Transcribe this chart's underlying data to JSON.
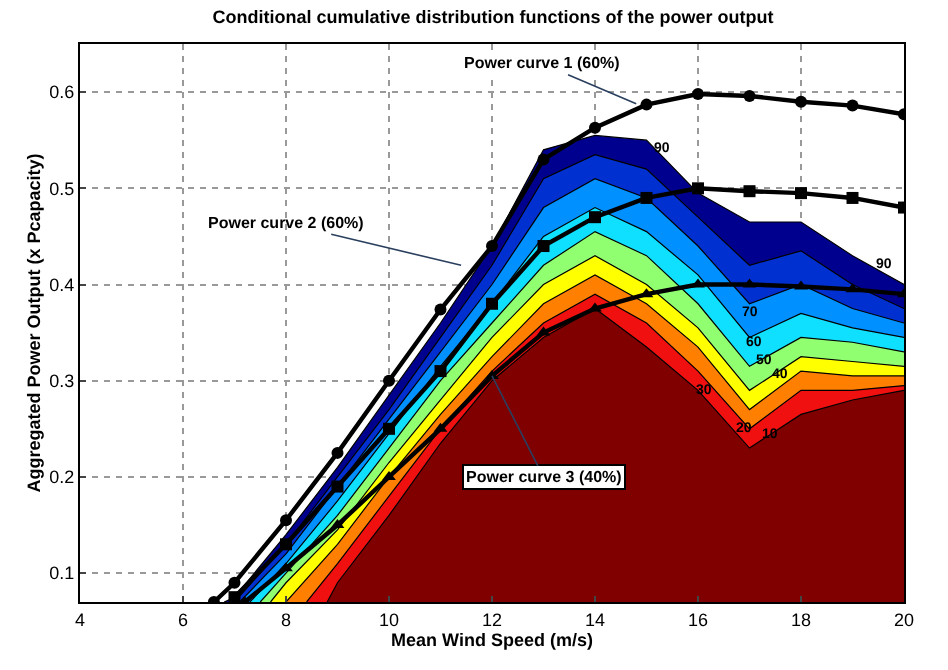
{
  "chart_data": {
    "type": "area",
    "title": "Conditional cumulative distribution functions of the power output",
    "xlabel": "Mean Wind Speed (m/s)",
    "ylabel": "Aggregated Power Output (x Pcapacity)",
    "xlim": [
      4,
      20
    ],
    "xticks": [
      4,
      6,
      8,
      10,
      12,
      14,
      16,
      18,
      20
    ],
    "ylim": [
      0.07,
      0.65
    ],
    "yticks": [
      0.1,
      0.2,
      0.3,
      0.4,
      0.5,
      0.6
    ],
    "grid": true,
    "series": [
      {
        "color": "#00008f",
        "x": [
          6.8,
          7,
          8,
          9,
          10,
          11,
          12,
          13,
          14,
          15,
          16,
          17,
          18,
          19,
          20
        ],
        "values": [
          0.07,
          0.075,
          0.14,
          0.21,
          0.285,
          0.36,
          0.44,
          0.54,
          0.555,
          0.55,
          0.495,
          0.465,
          0.465,
          0.43,
          0.4
        ]
      },
      {
        "color": "#0030d0",
        "x": [
          7,
          8,
          9,
          10,
          11,
          12,
          13,
          14,
          15,
          16,
          17,
          18,
          19,
          20
        ],
        "values": [
          0.07,
          0.13,
          0.2,
          0.27,
          0.345,
          0.42,
          0.51,
          0.535,
          0.52,
          0.47,
          0.42,
          0.435,
          0.4,
          0.375
        ]
      },
      {
        "color": "#0090ff",
        "x": [
          7.1,
          8,
          9,
          10,
          11,
          12,
          13,
          14,
          15,
          16,
          17,
          18,
          19,
          20
        ],
        "values": [
          0.07,
          0.12,
          0.19,
          0.26,
          0.33,
          0.4,
          0.48,
          0.51,
          0.49,
          0.44,
          0.38,
          0.4,
          0.375,
          0.36
        ]
      },
      {
        "color": "#10e0ff",
        "x": [
          7.3,
          8,
          9,
          10,
          11,
          12,
          13,
          14,
          15,
          16,
          17,
          18,
          19,
          20
        ],
        "values": [
          0.07,
          0.11,
          0.175,
          0.245,
          0.315,
          0.38,
          0.45,
          0.48,
          0.455,
          0.41,
          0.345,
          0.37,
          0.355,
          0.345
        ]
      },
      {
        "color": "#90ff70",
        "x": [
          7.5,
          8,
          9,
          10,
          11,
          12,
          13,
          14,
          15,
          16,
          17,
          18,
          19,
          20
        ],
        "values": [
          0.07,
          0.1,
          0.16,
          0.23,
          0.3,
          0.36,
          0.42,
          0.455,
          0.43,
          0.38,
          0.315,
          0.345,
          0.34,
          0.33
        ]
      },
      {
        "color": "#ffff00",
        "x": [
          7.7,
          8,
          9,
          10,
          11,
          12,
          13,
          14,
          15,
          16,
          17,
          18,
          19,
          20
        ],
        "values": [
          0.07,
          0.09,
          0.145,
          0.215,
          0.28,
          0.345,
          0.4,
          0.43,
          0.4,
          0.355,
          0.29,
          0.325,
          0.32,
          0.315
        ]
      },
      {
        "color": "#ff8000",
        "x": [
          8,
          9,
          10,
          11,
          12,
          13,
          14,
          15,
          16,
          17,
          18,
          19,
          20
        ],
        "values": [
          0.07,
          0.13,
          0.2,
          0.265,
          0.325,
          0.38,
          0.41,
          0.38,
          0.335,
          0.27,
          0.31,
          0.305,
          0.305
        ]
      },
      {
        "color": "#f01010",
        "x": [
          8.4,
          9,
          10,
          11,
          12,
          13,
          14,
          15,
          16,
          17,
          18,
          19,
          20
        ],
        "values": [
          0.07,
          0.11,
          0.18,
          0.25,
          0.31,
          0.36,
          0.39,
          0.36,
          0.31,
          0.25,
          0.29,
          0.29,
          0.295
        ]
      },
      {
        "color": "#800000",
        "x": [
          8.8,
          9,
          10,
          11,
          12,
          13,
          14,
          15,
          16,
          17,
          18,
          19,
          20
        ],
        "values": [
          0.07,
          0.09,
          0.16,
          0.235,
          0.3,
          0.345,
          0.375,
          0.335,
          0.29,
          0.23,
          0.265,
          0.28,
          0.29
        ]
      },
      {
        "type": "line",
        "color": "#000000",
        "marker": "circle",
        "x": [
          6.6,
          7,
          8,
          9,
          10,
          11,
          12,
          13,
          14,
          15,
          16,
          17,
          18,
          19,
          20
        ],
        "values": [
          0.07,
          0.09,
          0.155,
          0.225,
          0.3,
          0.374,
          0.44,
          0.53,
          0.563,
          0.587,
          0.598,
          0.596,
          0.59,
          0.586,
          0.577
        ]
      },
      {
        "type": "line",
        "color": "#000000",
        "marker": "square",
        "x": [
          7,
          8,
          9,
          10,
          11,
          12,
          13,
          14,
          15,
          16,
          17,
          18,
          19,
          20
        ],
        "values": [
          0.075,
          0.13,
          0.19,
          0.25,
          0.31,
          0.38,
          0.44,
          0.47,
          0.49,
          0.5,
          0.497,
          0.495,
          0.49,
          0.48
        ]
      },
      {
        "type": "line",
        "color": "#000000",
        "marker": "triangle",
        "x": [
          7.2,
          8,
          9,
          10,
          11,
          12,
          13,
          14,
          15,
          16,
          17,
          18,
          19,
          20
        ],
        "values": [
          0.07,
          0.105,
          0.15,
          0.2,
          0.25,
          0.305,
          0.35,
          0.375,
          0.39,
          0.4,
          0.4,
          0.398,
          0.395,
          0.39
        ]
      }
    ],
    "annotations": [
      {
        "text": "Power curve 1 (60%)",
        "x": 14.8,
        "y": 0.588
      },
      {
        "text": "Power curve 2 (60%)",
        "x": 11.4,
        "y": 0.42
      },
      {
        "text": "Power curve 3 (40%)",
        "x": 12,
        "y": 0.305
      },
      {
        "text": "90",
        "x": 15.3,
        "y": 0.54
      },
      {
        "text": "90",
        "x": 19.6,
        "y": 0.42
      },
      {
        "text": "70",
        "x": 17,
        "y": 0.37
      },
      {
        "text": "60",
        "x": 17.1,
        "y": 0.34
      },
      {
        "text": "50",
        "x": 17.3,
        "y": 0.32
      },
      {
        "text": "40",
        "x": 17.6,
        "y": 0.305
      },
      {
        "text": "30",
        "x": 16.1,
        "y": 0.29
      },
      {
        "text": "20",
        "x": 16.9,
        "y": 0.25
      },
      {
        "text": "10",
        "x": 17.4,
        "y": 0.244
      }
    ]
  }
}
